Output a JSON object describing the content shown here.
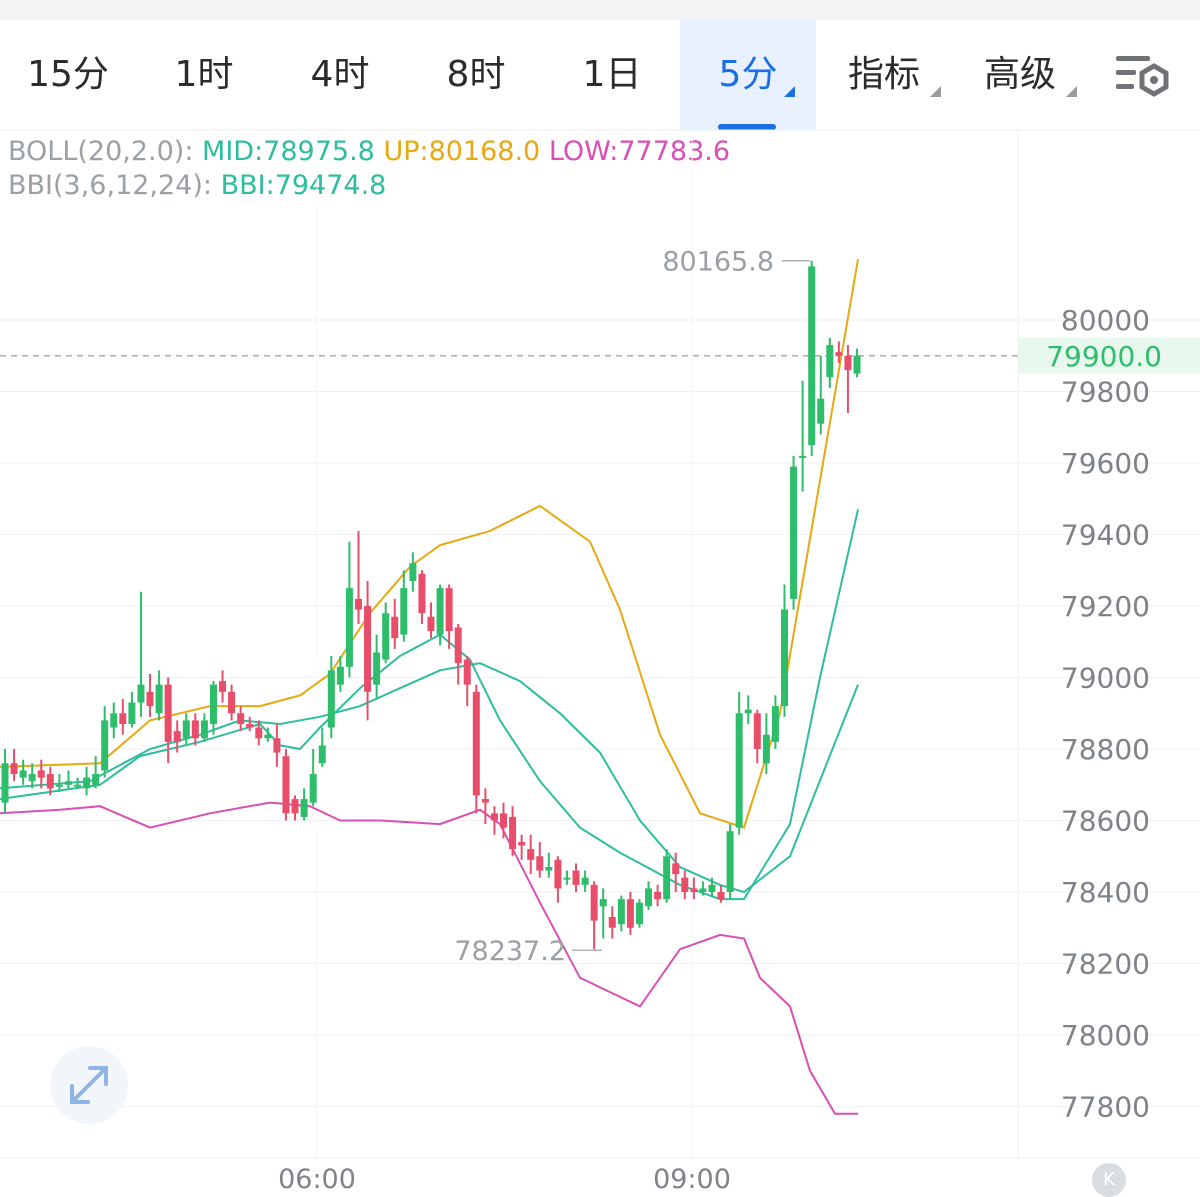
{
  "tabs": [
    {
      "label": "15分",
      "active": false,
      "dropdown": false
    },
    {
      "label": "1时",
      "active": false,
      "dropdown": false
    },
    {
      "label": "4时",
      "active": false,
      "dropdown": false
    },
    {
      "label": "8时",
      "active": false,
      "dropdown": false
    },
    {
      "label": "1日",
      "active": false,
      "dropdown": false
    },
    {
      "label": "5分",
      "active": true,
      "dropdown": true
    },
    {
      "label": "指标",
      "active": false,
      "dropdown": true
    },
    {
      "label": "高级",
      "active": false,
      "dropdown": true
    }
  ],
  "settings_icon": "chart-settings-icon",
  "indicators": {
    "boll": {
      "name": "BOLL(20,2.0):",
      "mid": "MID:78975.8",
      "up": "UP:80168.0",
      "low": "LOW:77783.6"
    },
    "bbi": {
      "name": "BBI(3,6,12,24):",
      "value": "BBI:79474.8"
    }
  },
  "colors": {
    "up": "#2ebd6b",
    "down": "#e84e6a",
    "mid": "#2ebd9d",
    "upper": "#e7a812",
    "lower": "#d94fb3",
    "active_tab": "#1b6fe0"
  },
  "chart_data": {
    "type": "candlestick",
    "interval": "5分",
    "ylim": [
      77700,
      80550
    ],
    "yticks": [
      80000,
      79800,
      79600,
      79400,
      79200,
      79000,
      78800,
      78600,
      78400,
      78200,
      78000,
      77800
    ],
    "ytick_labels": [
      "80000",
      "79800",
      "79600",
      "79400",
      "79200",
      "79000",
      "78800",
      "78600",
      "78400",
      "78200",
      "78000",
      "77800"
    ],
    "xtick_labels": [
      "06:00",
      "09:00"
    ],
    "current_price": 79900.0,
    "current_price_label": "79900.0",
    "max_label": "80165.8",
    "min_label": "78237.2",
    "max_value": 80165.8,
    "min_value": 78237.2,
    "candles": [
      [
        78650,
        78760,
        78800,
        78620
      ],
      [
        78760,
        78730,
        78800,
        78710
      ],
      [
        78720,
        78740,
        78770,
        78700
      ],
      [
        78710,
        78730,
        78760,
        78690
      ],
      [
        78740,
        78720,
        78770,
        78690
      ],
      [
        78730,
        78690,
        78750,
        78670
      ],
      [
        78700,
        78700,
        78730,
        78680
      ],
      [
        78700,
        78710,
        78740,
        78690
      ],
      [
        78700,
        78700,
        78720,
        78690
      ],
      [
        78690,
        78720,
        78750,
        78670
      ],
      [
        78700,
        78730,
        78780,
        78690
      ],
      [
        78740,
        78880,
        78920,
        78720
      ],
      [
        78860,
        78900,
        78930,
        78830
      ],
      [
        78900,
        78870,
        78940,
        78840
      ],
      [
        78870,
        78930,
        78960,
        78860
      ],
      [
        78930,
        78980,
        79240,
        78890
      ],
      [
        78960,
        78920,
        79010,
        78890
      ],
      [
        78900,
        78980,
        79020,
        78880
      ],
      [
        78980,
        78820,
        79000,
        78760
      ],
      [
        78850,
        78820,
        78880,
        78790
      ],
      [
        78830,
        78880,
        78900,
        78810
      ],
      [
        78880,
        78830,
        78900,
        78810
      ],
      [
        78830,
        78880,
        78900,
        78820
      ],
      [
        78870,
        78980,
        78990,
        78840
      ],
      [
        78990,
        78960,
        79020,
        78930
      ],
      [
        78960,
        78900,
        78980,
        78880
      ],
      [
        78900,
        78870,
        78920,
        78850
      ],
      [
        78870,
        78860,
        78890,
        78850
      ],
      [
        78860,
        78830,
        78880,
        78810
      ],
      [
        78830,
        78840,
        78860,
        78820
      ],
      [
        78830,
        78790,
        78870,
        78750
      ],
      [
        78780,
        78620,
        78800,
        78600
      ],
      [
        78660,
        78620,
        78670,
        78600
      ],
      [
        78610,
        78660,
        78690,
        78600
      ],
      [
        78650,
        78730,
        78800,
        78640
      ],
      [
        78760,
        78810,
        78860,
        78750
      ],
      [
        78860,
        79020,
        79060,
        78830
      ],
      [
        78980,
        79030,
        79060,
        78960
      ],
      [
        79030,
        79250,
        79380,
        79000
      ],
      [
        79220,
        79190,
        79410,
        79150
      ],
      [
        79200,
        78960,
        79270,
        78880
      ],
      [
        78980,
        79070,
        79120,
        78940
      ],
      [
        79050,
        79180,
        79210,
        79040
      ],
      [
        79170,
        79110,
        79220,
        79080
      ],
      [
        79120,
        79250,
        79300,
        79100
      ],
      [
        79270,
        79320,
        79350,
        79240
      ],
      [
        79290,
        79180,
        79300,
        79150
      ],
      [
        79170,
        79130,
        79210,
        79110
      ],
      [
        79120,
        79250,
        79260,
        79090
      ],
      [
        79250,
        79130,
        79260,
        79080
      ],
      [
        79140,
        79040,
        79150,
        78980
      ],
      [
        79050,
        78980,
        79060,
        78920
      ],
      [
        78960,
        78670,
        78980,
        78620
      ],
      [
        78660,
        78650,
        78690,
        78590
      ],
      [
        78620,
        78600,
        78640,
        78560
      ],
      [
        78620,
        78580,
        78650,
        78550
      ],
      [
        78610,
        78520,
        78640,
        78500
      ],
      [
        78540,
        78530,
        78560,
        78490
      ],
      [
        78520,
        78490,
        78560,
        78450
      ],
      [
        78500,
        78460,
        78540,
        78440
      ],
      [
        78460,
        78470,
        78510,
        78440
      ],
      [
        78490,
        78410,
        78500,
        78370
      ],
      [
        78440,
        78440,
        78460,
        78420
      ],
      [
        78460,
        78420,
        78480,
        78400
      ],
      [
        78420,
        78440,
        78460,
        78400
      ],
      [
        78420,
        78320,
        78430,
        78240
      ],
      [
        78360,
        78380,
        78410,
        78270
      ],
      [
        78330,
        78300,
        78360,
        78270
      ],
      [
        78310,
        78380,
        78390,
        78290
      ],
      [
        78380,
        78300,
        78400,
        78280
      ],
      [
        78310,
        78370,
        78380,
        78300
      ],
      [
        78360,
        78410,
        78430,
        78350
      ],
      [
        78400,
        78380,
        78420,
        78360
      ],
      [
        78380,
        78500,
        78520,
        78370
      ],
      [
        78480,
        78450,
        78510,
        78400
      ],
      [
        78440,
        78400,
        78460,
        78380
      ],
      [
        78410,
        78400,
        78440,
        78380
      ],
      [
        78400,
        78410,
        78430,
        78390
      ],
      [
        78400,
        78420,
        78440,
        78390
      ],
      [
        78400,
        78380,
        78420,
        78370
      ],
      [
        78400,
        78570,
        78590,
        78380
      ],
      [
        78580,
        78900,
        78960,
        78560
      ],
      [
        78900,
        78910,
        78950,
        78870
      ],
      [
        78900,
        78800,
        78910,
        78760
      ],
      [
        78760,
        78840,
        78900,
        78730
      ],
      [
        78820,
        78920,
        78950,
        78800
      ],
      [
        78920,
        79190,
        79260,
        78890
      ],
      [
        79220,
        79590,
        79620,
        79190
      ],
      [
        79620,
        79620,
        79830,
        79520
      ],
      [
        79650,
        80150,
        80165.8,
        79620
      ],
      [
        79710,
        79780,
        79900,
        79680
      ],
      [
        79840,
        79930,
        79950,
        79810
      ],
      [
        79910,
        79900,
        79940,
        79880
      ],
      [
        79900,
        79860,
        79930,
        79740
      ],
      [
        79850,
        79900,
        79920,
        79840
      ]
    ],
    "boll_mid": [
      [
        0,
        78690
      ],
      [
        90,
        78710
      ],
      [
        150,
        78800
      ],
      [
        200,
        78840
      ],
      [
        240,
        78880
      ],
      [
        280,
        78870
      ],
      [
        320,
        78890
      ],
      [
        360,
        78920
      ],
      [
        400,
        78970
      ],
      [
        440,
        79020
      ],
      [
        480,
        79040
      ],
      [
        520,
        78990
      ],
      [
        560,
        78900
      ],
      [
        600,
        78790
      ],
      [
        640,
        78600
      ],
      [
        680,
        78470
      ],
      [
        720,
        78420
      ],
      [
        744,
        78400
      ],
      [
        790,
        78500
      ],
      [
        858,
        78980
      ]
    ],
    "boll_upper": [
      [
        0,
        78750
      ],
      [
        100,
        78760
      ],
      [
        150,
        78880
      ],
      [
        210,
        78920
      ],
      [
        260,
        78920
      ],
      [
        300,
        78950
      ],
      [
        330,
        79010
      ],
      [
        370,
        79180
      ],
      [
        410,
        79310
      ],
      [
        440,
        79370
      ],
      [
        490,
        79410
      ],
      [
        540,
        79480
      ],
      [
        560,
        79440
      ],
      [
        590,
        79380
      ],
      [
        620,
        79190
      ],
      [
        660,
        78840
      ],
      [
        700,
        78620
      ],
      [
        744,
        78580
      ],
      [
        780,
        78900
      ],
      [
        858,
        80170
      ]
    ],
    "boll_lower": [
      [
        0,
        78620
      ],
      [
        60,
        78630
      ],
      [
        100,
        78640
      ],
      [
        150,
        78580
      ],
      [
        210,
        78620
      ],
      [
        270,
        78650
      ],
      [
        310,
        78640
      ],
      [
        340,
        78600
      ],
      [
        380,
        78600
      ],
      [
        440,
        78590
      ],
      [
        480,
        78630
      ],
      [
        500,
        78590
      ],
      [
        540,
        78370
      ],
      [
        580,
        78160
      ],
      [
        610,
        78120
      ],
      [
        640,
        78080
      ],
      [
        680,
        78240
      ],
      [
        720,
        78280
      ],
      [
        744,
        78270
      ],
      [
        760,
        78160
      ],
      [
        790,
        78080
      ],
      [
        810,
        77900
      ],
      [
        835,
        77780
      ],
      [
        858,
        77780
      ]
    ],
    "bbi": [
      [
        0,
        78660
      ],
      [
        100,
        78700
      ],
      [
        140,
        78780
      ],
      [
        200,
        78820
      ],
      [
        260,
        78870
      ],
      [
        280,
        78810
      ],
      [
        300,
        78800
      ],
      [
        320,
        78860
      ],
      [
        360,
        78970
      ],
      [
        400,
        79060
      ],
      [
        440,
        79120
      ],
      [
        470,
        79050
      ],
      [
        500,
        78880
      ],
      [
        540,
        78710
      ],
      [
        580,
        78580
      ],
      [
        620,
        78510
      ],
      [
        680,
        78420
      ],
      [
        720,
        78380
      ],
      [
        744,
        78380
      ],
      [
        790,
        78590
      ],
      [
        820,
        79000
      ],
      [
        858,
        79470
      ]
    ]
  }
}
